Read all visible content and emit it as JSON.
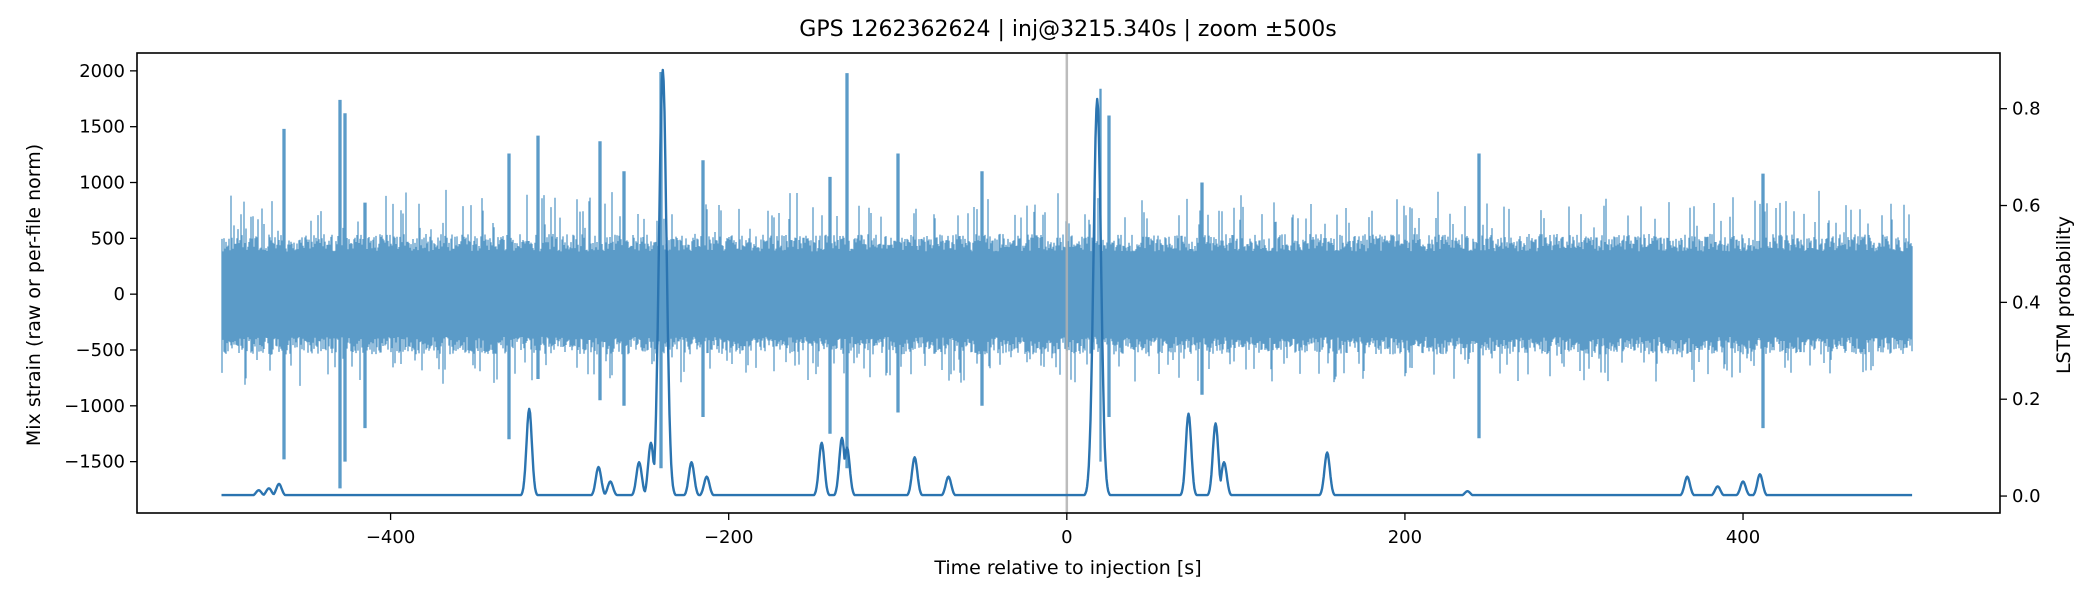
{
  "chart_data": {
    "type": "line",
    "title": "GPS 1262362624 | inj@3215.340s | zoom ±500s",
    "xlabel": "Time relative to injection [s]",
    "ylabel_left": "Mix strain (raw or per-file norm)",
    "ylabel_right": "LSTM probability",
    "xlim": [
      -550,
      552
    ],
    "ylim_left": [
      -1960,
      2160
    ],
    "ylim_right": [
      -0.035,
      0.915
    ],
    "x_ticks": [
      -400,
      -200,
      0,
      200,
      400
    ],
    "x_tick_labels": [
      "−400",
      "−200",
      "0",
      "200",
      "400"
    ],
    "y_left_ticks": [
      -1500,
      -1000,
      -500,
      0,
      500,
      1000,
      1500,
      2000
    ],
    "y_left_tick_labels": [
      "−1500",
      "−1000",
      "−500",
      "0",
      "500",
      "1000",
      "1500",
      "2000"
    ],
    "y_right_ticks": [
      0.0,
      0.2,
      0.4,
      0.6,
      0.8
    ],
    "y_right_tick_labels": [
      "0.0",
      "0.2",
      "0.4",
      "0.6",
      "0.8"
    ],
    "injection_marker_x": 0,
    "grid": false,
    "colors": {
      "strain": "#5b9bc8",
      "probability": "#2b74b0",
      "marker": "#b0b0b0"
    },
    "series": [
      {
        "axis": "left",
        "x_range": [
          -500,
          500
        ],
        "typical_amplitude": 450,
        "spikes": [
          {
            "x": -463,
            "high": 1480,
            "low": -1480
          },
          {
            "x": -430,
            "high": 1740,
            "low": -1740
          },
          {
            "x": -427,
            "high": 1620,
            "low": -1500
          },
          {
            "x": -415,
            "high": 820,
            "low": -1200
          },
          {
            "x": -330,
            "high": 1260,
            "low": -1300
          },
          {
            "x": -313,
            "high": 1420,
            "low": -760
          },
          {
            "x": -276,
            "high": 1370,
            "low": -950
          },
          {
            "x": -262,
            "high": 1100,
            "low": -1000
          },
          {
            "x": -240,
            "high": 1990,
            "low": -1560
          },
          {
            "x": -215,
            "high": 1200,
            "low": -1100
          },
          {
            "x": -140,
            "high": 1050,
            "low": -1250
          },
          {
            "x": -130,
            "high": 1980,
            "low": -1560
          },
          {
            "x": -100,
            "high": 1260,
            "low": -1060
          },
          {
            "x": -50,
            "high": 1100,
            "low": -1000
          },
          {
            "x": 20,
            "high": 1840,
            "low": -1500
          },
          {
            "x": 25,
            "high": 1600,
            "low": -1100
          },
          {
            "x": 80,
            "high": 1000,
            "low": -900
          },
          {
            "x": 244,
            "high": 1260,
            "low": -1290
          },
          {
            "x": 412,
            "high": 1080,
            "low": -1200
          }
        ]
      },
      {
        "axis": "right",
        "baseline": 0.002,
        "x_range": [
          -500,
          500
        ],
        "peaks": [
          {
            "x": -478,
            "value": 0.012
          },
          {
            "x": -472,
            "value": 0.016
          },
          {
            "x": -466,
            "value": 0.025
          },
          {
            "x": -318,
            "value": 0.18
          },
          {
            "x": -277,
            "value": 0.06
          },
          {
            "x": -270,
            "value": 0.03
          },
          {
            "x": -253,
            "value": 0.07
          },
          {
            "x": -246,
            "value": 0.11
          },
          {
            "x": -239,
            "value": 0.88
          },
          {
            "x": -222,
            "value": 0.07
          },
          {
            "x": -213,
            "value": 0.04
          },
          {
            "x": -145,
            "value": 0.11
          },
          {
            "x": -133,
            "value": 0.12
          },
          {
            "x": -130,
            "value": 0.1
          },
          {
            "x": -90,
            "value": 0.08
          },
          {
            "x": -70,
            "value": 0.04
          },
          {
            "x": 18,
            "value": 0.82
          },
          {
            "x": 72,
            "value": 0.17
          },
          {
            "x": 88,
            "value": 0.15
          },
          {
            "x": 93,
            "value": 0.07
          },
          {
            "x": 154,
            "value": 0.09
          },
          {
            "x": 237,
            "value": 0.01
          },
          {
            "x": 367,
            "value": 0.04
          },
          {
            "x": 385,
            "value": 0.02
          },
          {
            "x": 400,
            "value": 0.03
          },
          {
            "x": 410,
            "value": 0.045
          }
        ]
      }
    ]
  }
}
